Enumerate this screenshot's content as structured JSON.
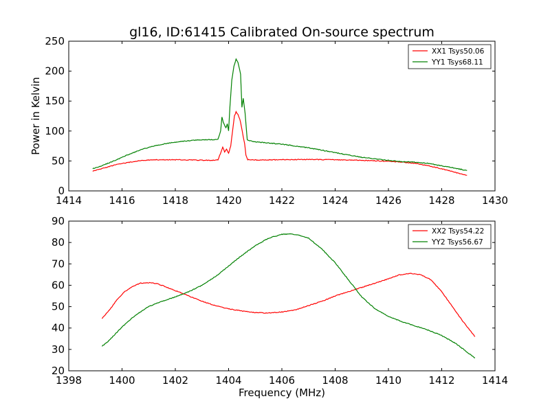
{
  "chart_data": [
    {
      "type": "line",
      "title": "gl16, ID:61415 Calibrated On-source spectrum",
      "xlabel": "",
      "ylabel": "Power in Kelvin",
      "xlim": [
        1414,
        1430
      ],
      "ylim": [
        0,
        250
      ],
      "xticks": [
        1414,
        1416,
        1418,
        1420,
        1422,
        1424,
        1426,
        1428,
        1430
      ],
      "yticks": [
        0,
        50,
        100,
        150,
        200,
        250
      ],
      "legend": "top-right",
      "grid": false,
      "series": [
        {
          "name": "XX1 Tsys50.06",
          "color": "#ff0000",
          "x": [
            1414.9,
            1415.3,
            1415.8,
            1416.3,
            1416.8,
            1417.3,
            1418.0,
            1418.7,
            1419.3,
            1419.6,
            1419.72,
            1419.78,
            1419.85,
            1419.92,
            1420.0,
            1420.08,
            1420.15,
            1420.22,
            1420.28,
            1420.35,
            1420.42,
            1420.48,
            1420.55,
            1420.6,
            1420.65,
            1420.72,
            1421.0,
            1422.0,
            1423.0,
            1424.0,
            1425.0,
            1426.0,
            1426.5,
            1427.0,
            1427.5,
            1428.0,
            1428.5,
            1428.95
          ],
          "values": [
            33,
            38,
            44,
            48,
            51,
            52,
            52,
            51.5,
            51,
            52,
            65,
            73,
            65,
            70,
            63,
            75,
            100,
            125,
            132,
            128,
            120,
            108,
            90,
            80,
            60,
            52,
            51.5,
            52,
            52.5,
            52,
            51,
            49.5,
            48,
            46,
            42,
            37,
            31,
            26
          ]
        },
        {
          "name": "YY1 Tsys68.11",
          "color": "#008000",
          "x": [
            1414.9,
            1415.3,
            1415.8,
            1416.3,
            1416.8,
            1417.3,
            1417.8,
            1418.3,
            1418.8,
            1419.3,
            1419.6,
            1419.7,
            1419.75,
            1419.8,
            1419.9,
            1419.95,
            1420.0,
            1420.05,
            1420.12,
            1420.2,
            1420.28,
            1420.35,
            1420.45,
            1420.5,
            1420.55,
            1420.62,
            1420.7,
            1421.0,
            1422.0,
            1423.0,
            1424.0,
            1425.0,
            1426.0,
            1426.5,
            1427.0,
            1427.5,
            1428.0,
            1428.5,
            1428.95
          ],
          "values": [
            37,
            43,
            52,
            62,
            70,
            76,
            80,
            83,
            85,
            85.5,
            86,
            100,
            123,
            115,
            105,
            112,
            100,
            140,
            185,
            208,
            220,
            215,
            195,
            140,
            155,
            130,
            85,
            82,
            78,
            72,
            64,
            56,
            51,
            49,
            48,
            46,
            42,
            38,
            34
          ]
        }
      ]
    },
    {
      "type": "line",
      "title": "",
      "xlabel": "Frequency (MHz)",
      "ylabel": "",
      "xlim": [
        1398,
        1414
      ],
      "ylim": [
        20,
        90
      ],
      "xticks": [
        1398,
        1400,
        1402,
        1404,
        1406,
        1408,
        1410,
        1412,
        1414
      ],
      "yticks": [
        20,
        30,
        40,
        50,
        60,
        70,
        80,
        90
      ],
      "legend": "top-right",
      "grid": false,
      "series": [
        {
          "name": "XX2 Tsys54.22",
          "color": "#ff0000",
          "x": [
            1399.25,
            1399.5,
            1399.8,
            1400.1,
            1400.4,
            1400.7,
            1401.0,
            1401.3,
            1401.6,
            1402.0,
            1402.5,
            1403.0,
            1403.5,
            1404.0,
            1404.5,
            1405.0,
            1405.5,
            1406.0,
            1406.5,
            1407.0,
            1407.5,
            1408.0,
            1408.5,
            1409.0,
            1409.5,
            1410.0,
            1410.4,
            1410.8,
            1411.2,
            1411.6,
            1412.0,
            1412.4,
            1412.8,
            1413.25
          ],
          "values": [
            44.5,
            48,
            53,
            57,
            59.5,
            61,
            61.2,
            60.8,
            59.5,
            57.5,
            55,
            52.5,
            50.5,
            49,
            48,
            47.2,
            47,
            47.5,
            48.5,
            50.5,
            52.5,
            55,
            57,
            59,
            61,
            63,
            64.8,
            65.5,
            65,
            62.5,
            57,
            50,
            43,
            36
          ]
        },
        {
          "name": "YY2 Tsys56.67",
          "color": "#008000",
          "x": [
            1399.25,
            1399.5,
            1400.0,
            1400.5,
            1401.0,
            1401.5,
            1402.0,
            1402.5,
            1403.0,
            1403.5,
            1404.0,
            1404.5,
            1405.0,
            1405.5,
            1406.0,
            1406.3,
            1406.6,
            1407.0,
            1407.5,
            1408.0,
            1408.5,
            1409.0,
            1409.5,
            1410.0,
            1410.5,
            1411.0,
            1411.5,
            1412.0,
            1412.5,
            1413.25
          ],
          "values": [
            31.5,
            34,
            40.5,
            46,
            50,
            52.5,
            54.5,
            57,
            60,
            64,
            69,
            74,
            78.5,
            82,
            83.8,
            84,
            83.5,
            82,
            77,
            70.5,
            62.5,
            54.5,
            49,
            45.5,
            43,
            41,
            39,
            36.5,
            33,
            26
          ]
        }
      ]
    }
  ]
}
